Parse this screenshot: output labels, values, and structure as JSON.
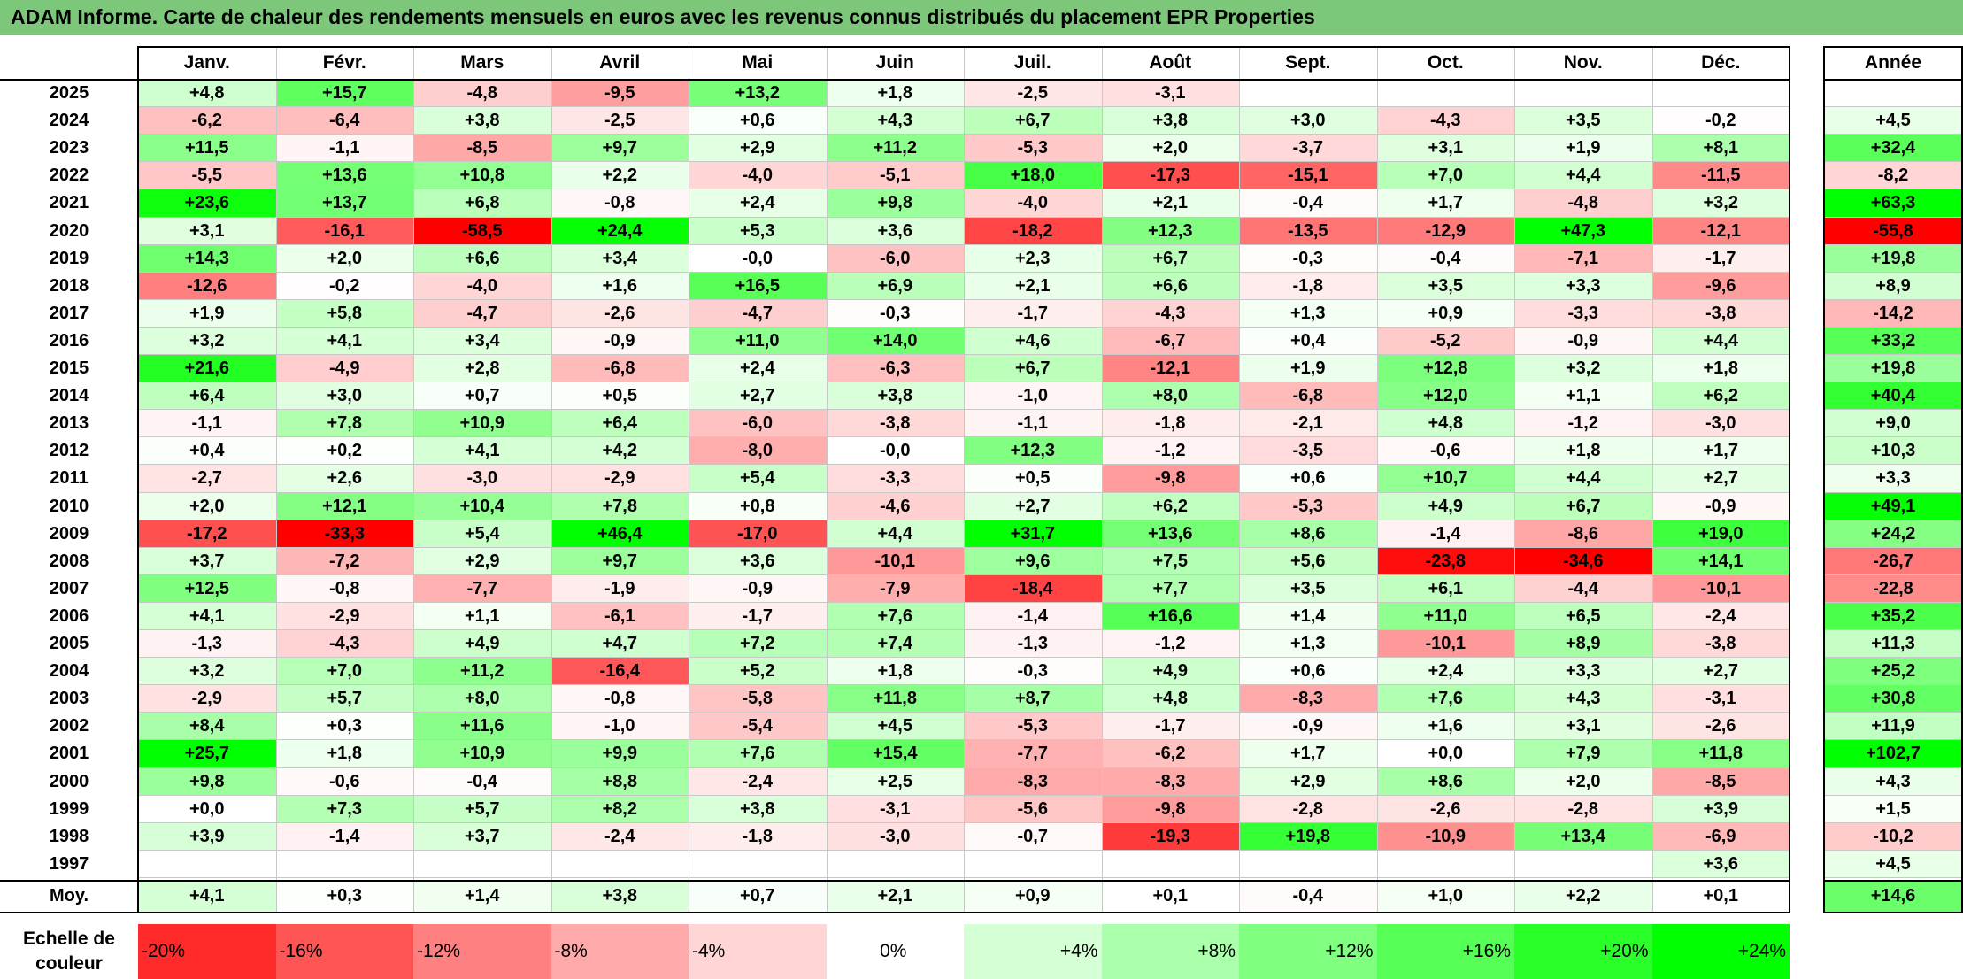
{
  "title": "ADAM Informe. Carte de chaleur des rendements mensuels en euros avec les revenus connus distribués du placement EPR Properties",
  "chart_data": {
    "type": "heatmap",
    "title": "ADAM Informe. Carte de chaleur des rendements mensuels en euros avec les revenus connus distribués du placement EPR Properties",
    "months": [
      "Janv.",
      "Févr.",
      "Mars",
      "Avril",
      "Mai",
      "Juin",
      "Juil.",
      "Août",
      "Sept.",
      "Oct.",
      "Nov.",
      "Déc."
    ],
    "year_header": "Année",
    "rows": [
      {
        "year": "2025",
        "values": [
          "+4,8",
          "+15,7",
          "-4,8",
          "-9,5",
          "+13,2",
          "+1,8",
          "-2,5",
          "-3,1",
          "",
          "",
          "",
          ""
        ],
        "annual": ""
      },
      {
        "year": "2024",
        "values": [
          "-6,2",
          "-6,4",
          "+3,8",
          "-2,5",
          "+0,6",
          "+4,3",
          "+6,7",
          "+3,8",
          "+3,0",
          "-4,3",
          "+3,5",
          "-0,2"
        ],
        "annual": "+4,5"
      },
      {
        "year": "2023",
        "values": [
          "+11,5",
          "-1,1",
          "-8,5",
          "+9,7",
          "+2,9",
          "+11,2",
          "-5,3",
          "+2,0",
          "-3,7",
          "+3,1",
          "+1,9",
          "+8,1"
        ],
        "annual": "+32,4"
      },
      {
        "year": "2022",
        "values": [
          "-5,5",
          "+13,6",
          "+10,8",
          "+2,2",
          "-4,0",
          "-5,1",
          "+18,0",
          "-17,3",
          "-15,1",
          "+7,0",
          "+4,4",
          "-11,5"
        ],
        "annual": "-8,2"
      },
      {
        "year": "2021",
        "values": [
          "+23,6",
          "+13,7",
          "+6,8",
          "-0,8",
          "+2,4",
          "+9,8",
          "-4,0",
          "+2,1",
          "-0,4",
          "+1,7",
          "-4,8",
          "+3,2"
        ],
        "annual": "+63,3"
      },
      {
        "year": "2020",
        "values": [
          "+3,1",
          "-16,1",
          "-58,5",
          "+24,4",
          "+5,3",
          "+3,6",
          "-18,2",
          "+12,3",
          "-13,5",
          "-12,9",
          "+47,3",
          "-12,1"
        ],
        "annual": "-55,8"
      },
      {
        "year": "2019",
        "values": [
          "+14,3",
          "+2,0",
          "+6,6",
          "+3,4",
          "-0,0",
          "-6,0",
          "+2,3",
          "+6,7",
          "-0,3",
          "-0,4",
          "-7,1",
          "-1,7"
        ],
        "annual": "+19,8"
      },
      {
        "year": "2018",
        "values": [
          "-12,6",
          "-0,2",
          "-4,0",
          "+1,6",
          "+16,5",
          "+6,9",
          "+2,1",
          "+6,6",
          "-1,8",
          "+3,5",
          "+3,3",
          "-9,6"
        ],
        "annual": "+8,9"
      },
      {
        "year": "2017",
        "values": [
          "+1,9",
          "+5,8",
          "-4,7",
          "-2,6",
          "-4,7",
          "-0,3",
          "-1,7",
          "-4,3",
          "+1,3",
          "+0,9",
          "-3,3",
          "-3,8"
        ],
        "annual": "-14,2"
      },
      {
        "year": "2016",
        "values": [
          "+3,2",
          "+4,1",
          "+3,4",
          "-0,9",
          "+11,0",
          "+14,0",
          "+4,6",
          "-6,7",
          "+0,4",
          "-5,2",
          "-0,9",
          "+4,4"
        ],
        "annual": "+33,2"
      },
      {
        "year": "2015",
        "values": [
          "+21,6",
          "-4,9",
          "+2,8",
          "-6,8",
          "+2,4",
          "-6,3",
          "+6,7",
          "-12,1",
          "+1,9",
          "+12,8",
          "+3,2",
          "+1,8"
        ],
        "annual": "+19,8"
      },
      {
        "year": "2014",
        "values": [
          "+6,4",
          "+3,0",
          "+0,7",
          "+0,5",
          "+2,7",
          "+3,8",
          "-1,0",
          "+8,0",
          "-6,8",
          "+12,0",
          "+1,1",
          "+6,2"
        ],
        "annual": "+40,4"
      },
      {
        "year": "2013",
        "values": [
          "-1,1",
          "+7,8",
          "+10,9",
          "+6,4",
          "-6,0",
          "-3,8",
          "-1,1",
          "-1,8",
          "-2,1",
          "+4,8",
          "-1,2",
          "-3,0"
        ],
        "annual": "+9,0"
      },
      {
        "year": "2012",
        "values": [
          "+0,4",
          "+0,2",
          "+4,1",
          "+4,2",
          "-8,0",
          "-0,0",
          "+12,3",
          "-1,2",
          "-3,5",
          "-0,6",
          "+1,8",
          "+1,7"
        ],
        "annual": "+10,3"
      },
      {
        "year": "2011",
        "values": [
          "-2,7",
          "+2,6",
          "-3,0",
          "-2,9",
          "+5,4",
          "-3,3",
          "+0,5",
          "-9,8",
          "+0,6",
          "+10,7",
          "+4,4",
          "+2,7"
        ],
        "annual": "+3,3"
      },
      {
        "year": "2010",
        "values": [
          "+2,0",
          "+12,1",
          "+10,4",
          "+7,8",
          "+0,8",
          "-4,6",
          "+2,7",
          "+6,2",
          "-5,3",
          "+4,9",
          "+6,7",
          "-0,9"
        ],
        "annual": "+49,1"
      },
      {
        "year": "2009",
        "values": [
          "-17,2",
          "-33,3",
          "+5,4",
          "+46,4",
          "-17,0",
          "+4,4",
          "+31,7",
          "+13,6",
          "+8,6",
          "-1,4",
          "-8,6",
          "+19,0"
        ],
        "annual": "+24,2"
      },
      {
        "year": "2008",
        "values": [
          "+3,7",
          "-7,2",
          "+2,9",
          "+9,7",
          "+3,6",
          "-10,1",
          "+9,6",
          "+7,5",
          "+5,6",
          "-23,8",
          "-34,6",
          "+14,1"
        ],
        "annual": "-26,7"
      },
      {
        "year": "2007",
        "values": [
          "+12,5",
          "-0,8",
          "-7,7",
          "-1,9",
          "-0,9",
          "-7,9",
          "-18,4",
          "+7,7",
          "+3,5",
          "+6,1",
          "-4,4",
          "-10,1"
        ],
        "annual": "-22,8"
      },
      {
        "year": "2006",
        "values": [
          "+4,1",
          "-2,9",
          "+1,1",
          "-6,1",
          "-1,7",
          "+7,6",
          "-1,4",
          "+16,6",
          "+1,4",
          "+11,0",
          "+6,5",
          "-2,4"
        ],
        "annual": "+35,2"
      },
      {
        "year": "2005",
        "values": [
          "-1,3",
          "-4,3",
          "+4,9",
          "+4,7",
          "+7,2",
          "+7,4",
          "-1,3",
          "-1,2",
          "+1,3",
          "-10,1",
          "+8,9",
          "-3,8"
        ],
        "annual": "+11,3"
      },
      {
        "year": "2004",
        "values": [
          "+3,2",
          "+7,0",
          "+11,2",
          "-16,4",
          "+5,2",
          "+1,8",
          "-0,3",
          "+4,9",
          "+0,6",
          "+2,4",
          "+3,3",
          "+2,7"
        ],
        "annual": "+25,2"
      },
      {
        "year": "2003",
        "values": [
          "-2,9",
          "+5,7",
          "+8,0",
          "-0,8",
          "-5,8",
          "+11,8",
          "+8,7",
          "+4,8",
          "-8,3",
          "+7,6",
          "+4,3",
          "-3,1"
        ],
        "annual": "+30,8"
      },
      {
        "year": "2002",
        "values": [
          "+8,4",
          "+0,3",
          "+11,6",
          "-1,0",
          "-5,4",
          "+4,5",
          "-5,3",
          "-1,7",
          "-0,9",
          "+1,6",
          "+3,1",
          "-2,6"
        ],
        "annual": "+11,9"
      },
      {
        "year": "2001",
        "values": [
          "+25,7",
          "+1,8",
          "+10,9",
          "+9,9",
          "+7,6",
          "+15,4",
          "-7,7",
          "-6,2",
          "+1,7",
          "+0,0",
          "+7,9",
          "+11,8"
        ],
        "annual": "+102,7"
      },
      {
        "year": "2000",
        "values": [
          "+9,8",
          "-0,6",
          "-0,4",
          "+8,8",
          "-2,4",
          "+2,5",
          "-8,3",
          "-8,3",
          "+2,9",
          "+8,6",
          "+2,0",
          "-8,5"
        ],
        "annual": "+4,3"
      },
      {
        "year": "1999",
        "values": [
          "+0,0",
          "+7,3",
          "+5,7",
          "+8,2",
          "+3,8",
          "-3,1",
          "-5,6",
          "-9,8",
          "-2,8",
          "-2,6",
          "-2,8",
          "+3,9"
        ],
        "annual": "+1,5"
      },
      {
        "year": "1998",
        "values": [
          "+3,9",
          "-1,4",
          "+3,7",
          "-2,4",
          "-1,8",
          "-3,0",
          "-0,7",
          "-19,3",
          "+19,8",
          "-10,9",
          "+13,4",
          "-6,9"
        ],
        "annual": "-10,2"
      },
      {
        "year": "1997",
        "values": [
          "",
          "",
          "",
          "",
          "",
          "",
          "",
          "",
          "",
          "",
          "",
          "+3,6"
        ],
        "annual": "+4,5"
      }
    ],
    "average": {
      "label": "Moy.",
      "values": [
        "+4,1",
        "+0,3",
        "+1,4",
        "+3,8",
        "+0,7",
        "+2,1",
        "+0,9",
        "+0,1",
        "-0,4",
        "+1,0",
        "+2,2",
        "+0,1"
      ],
      "annual": "+14,6"
    },
    "legend": {
      "label": "Echelle de couleur",
      "steps": [
        "-20%",
        "-16%",
        "-12%",
        "-8%",
        "-4%",
        "0%",
        "+4%",
        "+8%",
        "+12%",
        "+16%",
        "+20%",
        "+24%"
      ],
      "step_values": [
        -20,
        -16,
        -12,
        -8,
        -4,
        0,
        4,
        8,
        12,
        16,
        20,
        24
      ]
    },
    "colors": {
      "negative_max": "#ff0000",
      "neutral": "#ffffff",
      "positive_max": "#00ff00",
      "title_background": "#7cc77a"
    }
  }
}
